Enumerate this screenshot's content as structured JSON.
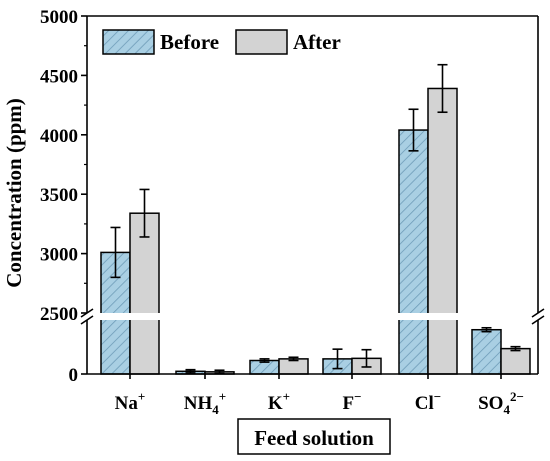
{
  "chart_data": {
    "type": "bar",
    "title": "",
    "xlabel": "Feed solution",
    "ylabel": "Concentration (ppm)",
    "categories": [
      {
        "base": "Na",
        "sub": "",
        "sup": "+"
      },
      {
        "base": "NH",
        "sub": "4",
        "sup": "+"
      },
      {
        "base": "K",
        "sub": "",
        "sup": "+"
      },
      {
        "base": "F",
        "sub": "",
        "sup": "−"
      },
      {
        "base": "Cl",
        "sub": "",
        "sup": "−"
      },
      {
        "base": "SO",
        "sub": "4",
        "sup": "2−"
      }
    ],
    "series": [
      {
        "name": "Before",
        "values": [
          3010,
          25,
          125,
          140,
          4040,
          410
        ],
        "errors": [
          210,
          15,
          15,
          90,
          175,
          18
        ],
        "color": "#a9cfe3"
      },
      {
        "name": "After",
        "values": [
          3340,
          20,
          140,
          145,
          4390,
          235
        ],
        "errors": [
          200,
          15,
          15,
          80,
          200,
          18
        ],
        "color": "#d3d3d3"
      }
    ],
    "y_axis": {
      "broken": true,
      "lower_range": [
        0,
        500
      ],
      "lower_ticks": [
        0
      ],
      "upper_range": [
        2500,
        5000
      ],
      "upper_ticks": [
        2500,
        3000,
        3500,
        4000,
        4500,
        5000
      ]
    },
    "legend_position": "top-left",
    "grid": false
  }
}
